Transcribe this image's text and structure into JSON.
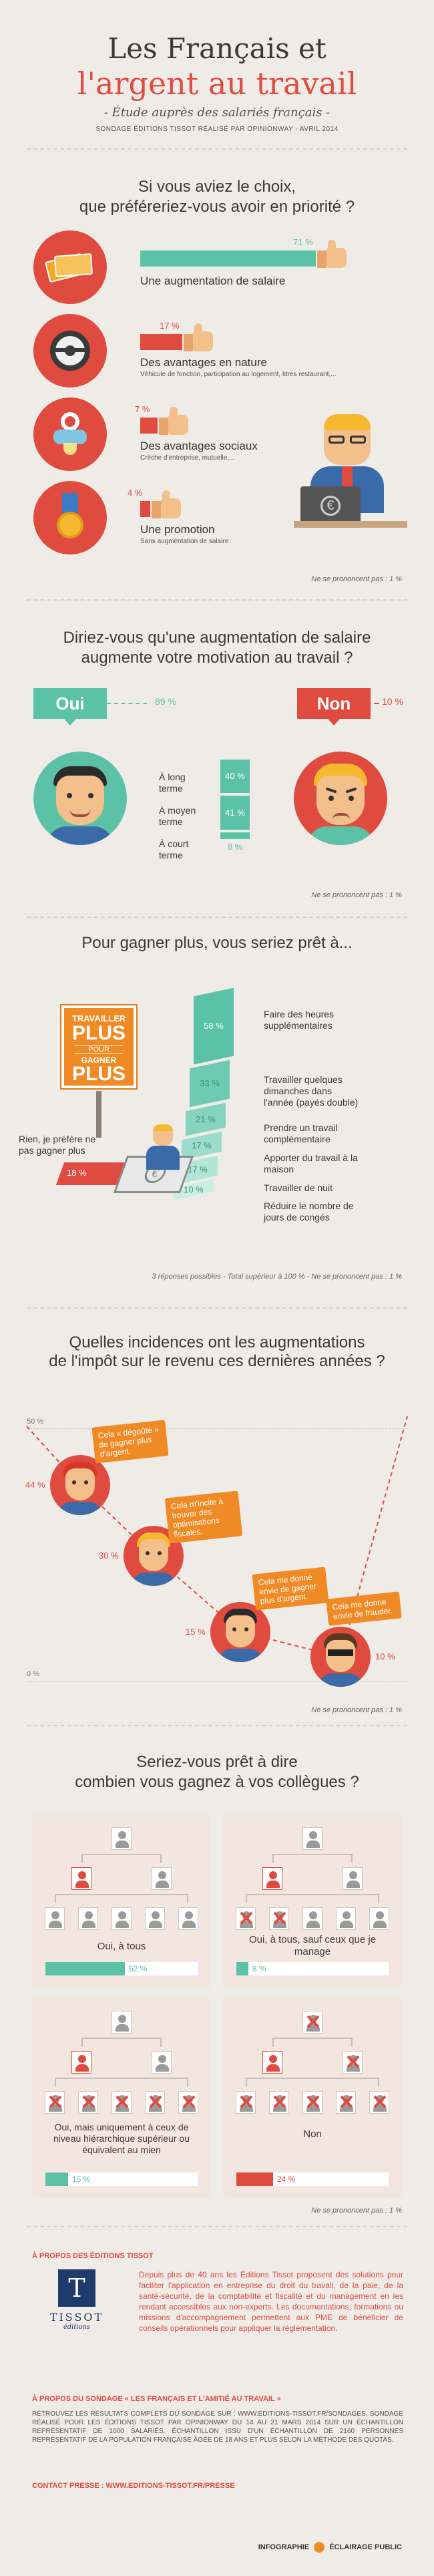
{
  "header": {
    "title_line1": "Les Français et",
    "title_line2": "l'argent au travail",
    "subtitle": "- Étude auprès des salariés français -",
    "source": "SONDAGE ÉDITIONS TISSOT RÉALISÉ PAR OPINIONWAY - AVRIL 2014"
  },
  "q1": {
    "title_line1": "Si vous aviez le choix,",
    "title_line2": "que préféreriez-vous avoir en priorité ?",
    "items": [
      {
        "pct": "71 %",
        "value": 71,
        "label": "Une augmentation de salaire",
        "sub": "",
        "icon": "banknotes-icon"
      },
      {
        "pct": "17 %",
        "value": 17,
        "label": "Des avantages en nature",
        "sub": "Véhicule de fonction, participation au logement, titres restaurant,...",
        "icon": "steering-wheel-icon"
      },
      {
        "pct": "7 %",
        "value": 7,
        "label": "Des avantages sociaux",
        "sub": "Crèche d'entreprise, mutuelle,...",
        "icon": "pacifier-icon"
      },
      {
        "pct": "4 %",
        "value": 4,
        "label": "Une promotion",
        "sub": "Sans augmentation de salaire",
        "icon": "medal-icon"
      }
    ],
    "note": "Ne se prononcent pas : 1 %"
  },
  "q2": {
    "title_line1": "Diriez-vous qu'une augmentation de salaire",
    "title_line2": "augmente votre motivation au travail ?",
    "oui_label": "Oui",
    "oui_pct": "89 %",
    "non_label": "Non",
    "non_pct": "10 %",
    "terms": [
      {
        "label": "À long terme",
        "pct": "40 %",
        "value": 40
      },
      {
        "label": "À moyen terme",
        "pct": "41 %",
        "value": 41
      },
      {
        "label": "À court terme",
        "pct": "8 %",
        "value": 8
      }
    ],
    "note": "Ne se prononcent pas : 1 %"
  },
  "q3": {
    "title": "Pour gagner plus, vous seriez prêt à...",
    "sign": [
      "TRAVAILLER",
      "PLUS",
      "POUR",
      "GAGNER",
      "PLUS"
    ],
    "items": [
      {
        "pct": "58 %",
        "value": 58,
        "label": "Faire des heures supplémentaires"
      },
      {
        "pct": "33 %",
        "value": 33,
        "label": "Travailler quelques dimanches dans l'année (payés double)"
      },
      {
        "pct": "21 %",
        "value": 21,
        "label": "Prendre un travail complémentaire"
      },
      {
        "pct": "17 %",
        "value": 17,
        "label": "Apporter du travail à la maison"
      },
      {
        "pct": "17 %",
        "value": 17,
        "label": "Travailler de nuit"
      },
      {
        "pct": "10 %",
        "value": 10,
        "label": "Réduire le nombre de jours de congés"
      }
    ],
    "nothing_label": "Rien, je préfère ne pas gagner plus",
    "nothing_pct": "18 %",
    "note": "3 réponses possibles - Total supérieur à 100 % - Ne se prononcent pas : 1 %"
  },
  "q4": {
    "title_line1": "Quelles incidences ont les augmentations",
    "title_line2": "de l'impôt sur le revenu ces dernières années ?",
    "axis_top": "50 %",
    "axis_bottom": "0 %",
    "items": [
      {
        "pct": "44 %",
        "value": 44,
        "quote": "Cela « dégoûte » de gagner plus d'argent."
      },
      {
        "pct": "30 %",
        "value": 30,
        "quote": "Cela m'incite à trouver des optimisations fiscales."
      },
      {
        "pct": "15 %",
        "value": 15,
        "quote": "Cela me donne envie de gagner plus d'argent."
      },
      {
        "pct": "10 %",
        "value": 10,
        "quote": "Cela me donne envie de frauder."
      }
    ],
    "note": "Ne se prononcent pas : 1 %"
  },
  "q5": {
    "title_line1": "Seriez-vous prêt à dire",
    "title_line2": "combien vous gagnez à vos collègues ?",
    "cards": [
      {
        "label": "Oui, à tous",
        "pct": "52 %",
        "value": 52
      },
      {
        "label": "Oui, à tous, sauf ceux que je manage",
        "pct": "8 %",
        "value": 8
      },
      {
        "label": "Oui, mais uniquement à ceux de niveau hiérarchique supérieur ou équivalent au mien",
        "pct": "15 %",
        "value": 15
      },
      {
        "label": "Non",
        "pct": "24 %",
        "value": 24
      }
    ],
    "note": "Ne se prononcent pas : 1 %"
  },
  "footer": {
    "about_title": "À PROPOS DES ÉDITIONS TISSOT",
    "logo_name": "TISSOT",
    "logo_sub": "éditions",
    "about_text": "Depuis plus de 40 ans les Éditions Tissot proposent des solutions pour faciliter l'application en entreprise du droit du travail, de la paie, de la santé-sécurité, de la comptabilité et fiscalité et du management en les rendant accessibles aux non-experts. Les documentations, formations ou missions d'accompagnement permettent aux PME de bénéficier de conseils opérationnels pour appliquer la réglementation.",
    "survey_title": "À PROPOS DU SONDAGE « LES FRANÇAIS ET L'AMITIÉ AU TRAVAIL »",
    "survey_text": "RETROUVEZ LES RÉSULTATS COMPLETS DU SONDAGE SUR : WWW.EDITIONS-TISSOT.FR/SONDAGES. SONDAGE RÉALISÉ POUR LES ÉDITIONS TISSOT PAR OPINIONWAY DU 14 AU 21 MARS 2014 SUR UN ÉCHANTILLON REPRÉSENTATIF DE 1000 SALARIÉS. ÉCHANTILLON ISSU D'UN ÉCHANTILLON DE 2160 PERSONNES REPRÉSENTATIF DE LA POPULATION FRANÇAISE ÂGÉE DE 18 ANS ET PLUS SELON LA MÉTHODE DES QUOTAS.",
    "contact": "CONTACT PRESSE : WWW.EDITIONS-TISSOT.FR/PRESSE",
    "credit": "INFOGRAPHIE",
    "credit_brand": "ÉCLAIRAGE PUBLIC"
  },
  "colors": {
    "accent": "#e04b40",
    "green": "#5bc2a8",
    "green_dark": "#2f9e86",
    "orange": "#f0a060",
    "bg": "#efebe6"
  }
}
